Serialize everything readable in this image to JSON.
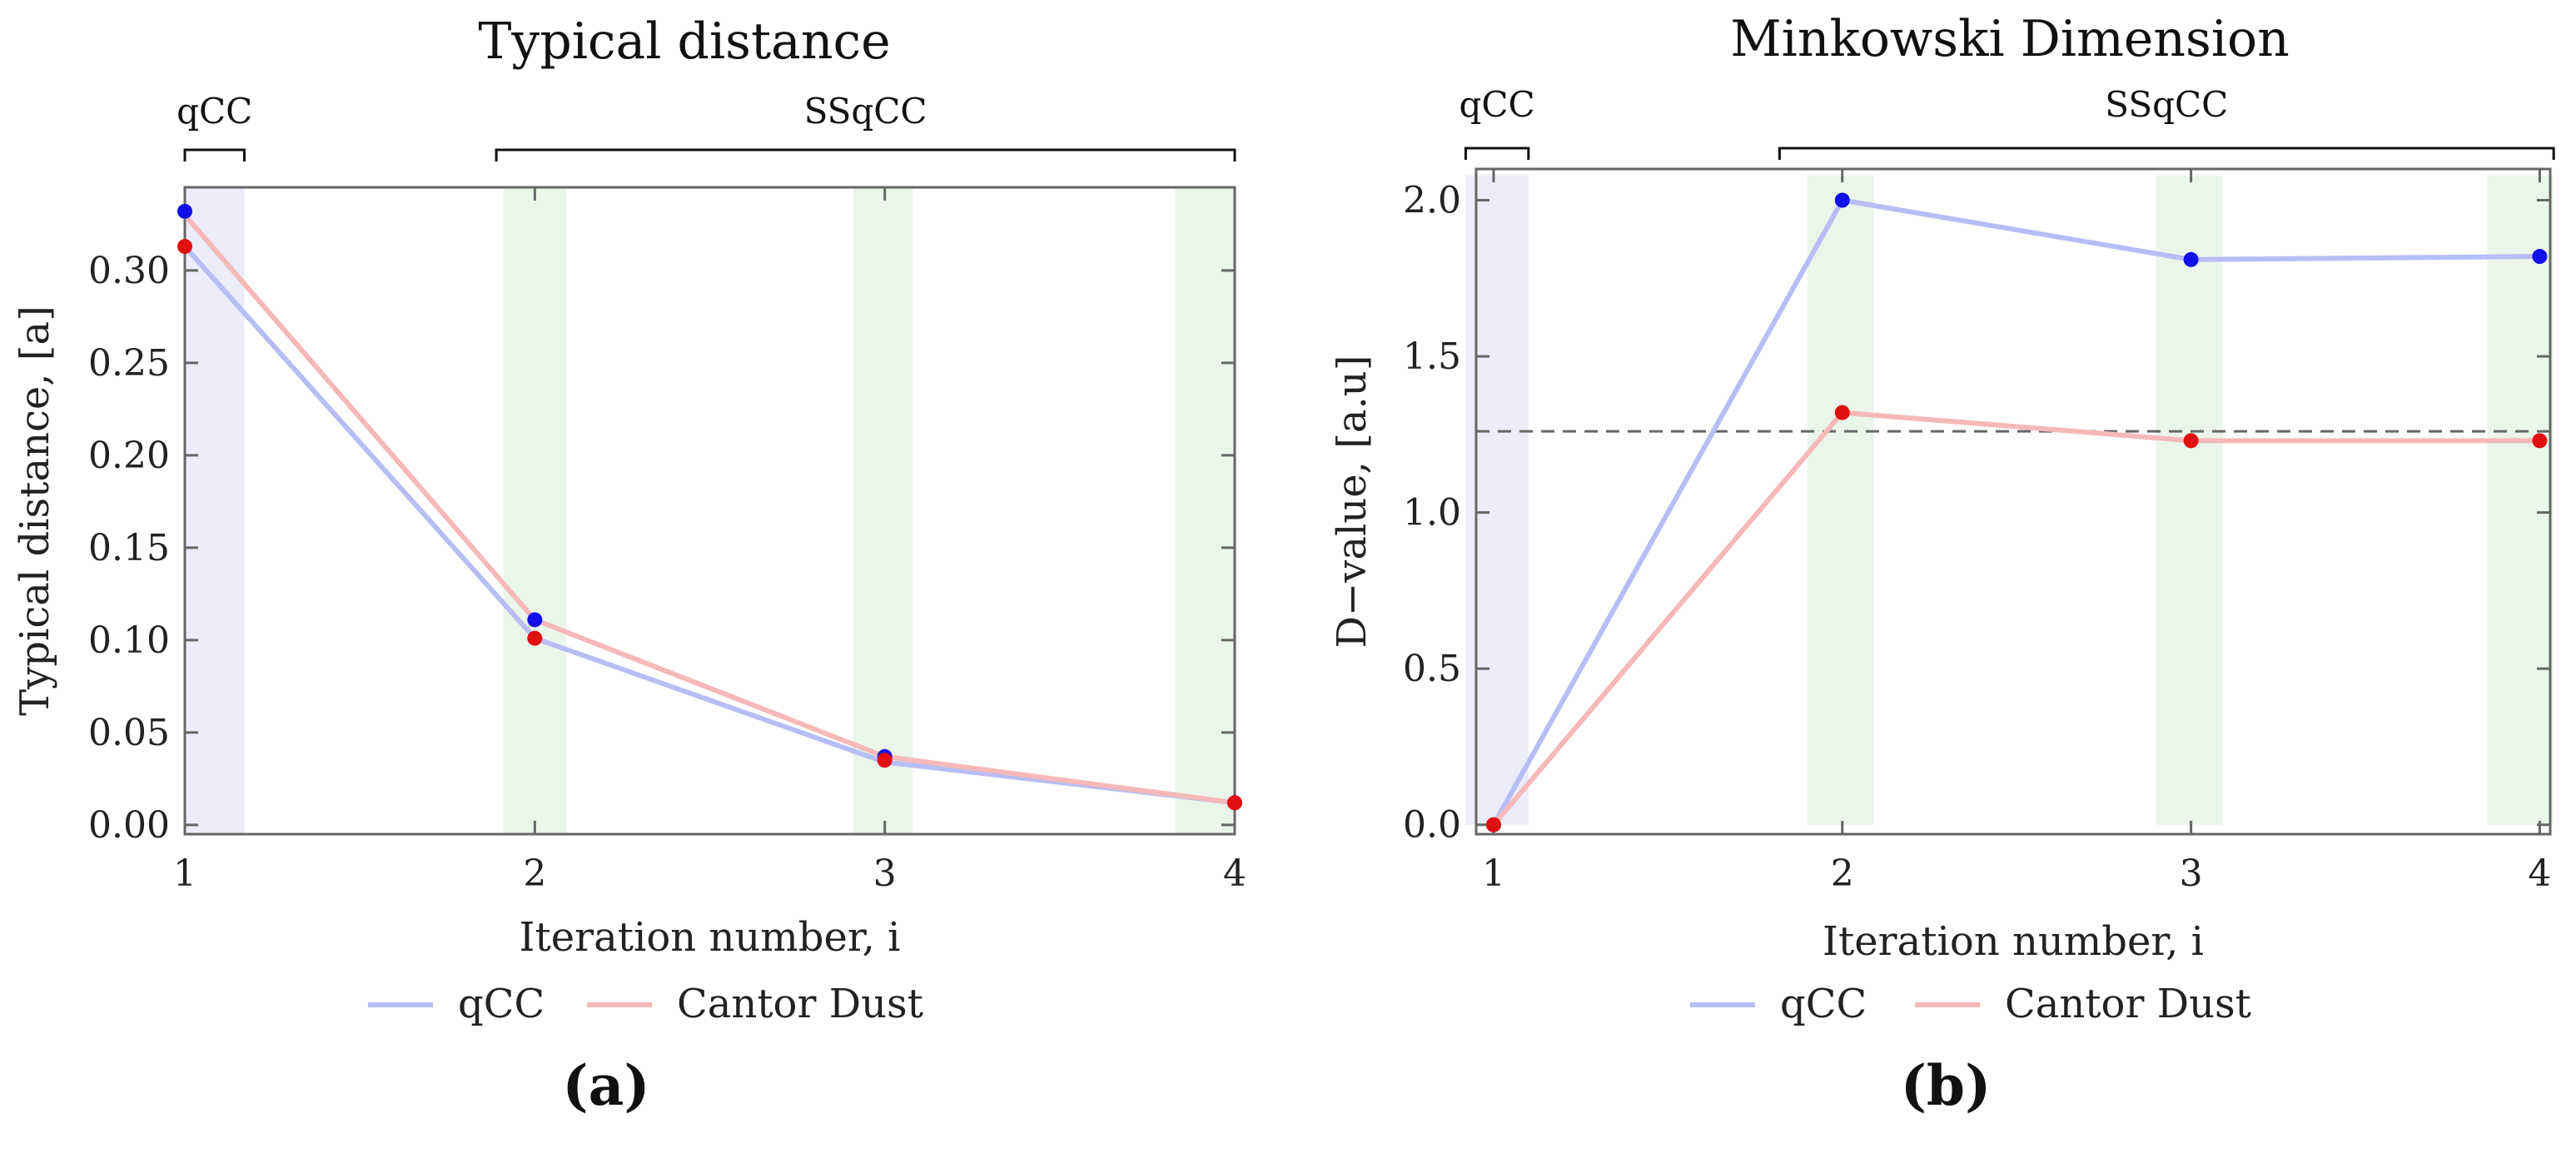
{
  "chart_data": [
    {
      "type": "line",
      "title": "Typical distance",
      "xlabel": "Iteration number, i",
      "ylabel": "Typical distance, [a]",
      "xlim": [
        1,
        4
      ],
      "ylim": [
        -0.005,
        0.345
      ],
      "x_ticks": [
        "1",
        "2",
        "3",
        "4"
      ],
      "y_ticks": [
        "0.00",
        "0.05",
        "0.10",
        "0.15",
        "0.20",
        "0.25",
        "0.30"
      ],
      "x": [
        1,
        2,
        3,
        4
      ],
      "series": [
        {
          "name": "qCC",
          "values": [
            0.332,
            0.111,
            0.037,
            0.012
          ],
          "line_values": [
            0.313,
            0.101,
            0.034,
            0.012
          ],
          "line_color": "#b7bdf5",
          "marker_color": "#1010e8"
        },
        {
          "name": "Cantor Dust",
          "values": [
            0.313,
            0.101,
            0.035,
            0.012
          ],
          "line_values": [
            0.33,
            0.111,
            0.037,
            0.012
          ],
          "line_color": "#f7b8b8",
          "marker_color": "#e01010"
        }
      ],
      "bands": [
        {
          "from": 1.0,
          "to": 1.17,
          "color": "#ececfa"
        },
        {
          "from": 1.91,
          "to": 2.09,
          "color": "#eaf6ea"
        },
        {
          "from": 2.91,
          "to": 3.08,
          "color": "#eaf6ea"
        },
        {
          "from": 3.83,
          "to": 4.0,
          "color": "#eaf6ea"
        }
      ],
      "brackets": [
        {
          "label": "qCC",
          "from": 1.0,
          "to": 1.17
        },
        {
          "label": "SSqCC",
          "from": 1.89,
          "to": 4.0
        }
      ],
      "legend": [
        "qCC",
        "Cantor Dust"
      ],
      "panel_label": "(a)"
    },
    {
      "type": "line",
      "title": "Minkowski Dimension",
      "xlabel": "Iteration number, i",
      "ylabel": "D−value, [a.u]",
      "xlim": [
        0.95,
        4.03
      ],
      "ylim": [
        -0.03,
        2.1
      ],
      "x_ticks": [
        "1",
        "2",
        "3",
        "4"
      ],
      "y_ticks": [
        "0.0",
        "0.5",
        "1.0",
        "1.5",
        "2.0"
      ],
      "x": [
        1,
        2,
        3,
        4
      ],
      "series": [
        {
          "name": "qCC",
          "values": [
            0.0,
            2.0,
            1.81,
            1.82
          ],
          "line_color": "#b7bdf5",
          "marker_color": "#1010e8"
        },
        {
          "name": "Cantor Dust",
          "values": [
            0.0,
            1.32,
            1.23,
            1.23
          ],
          "line_color": "#f7b8b8",
          "marker_color": "#e01010"
        }
      ],
      "reference_line": 1.26,
      "bands": [
        {
          "from": 0.92,
          "to": 1.1,
          "color": "#ececfa"
        },
        {
          "from": 1.9,
          "to": 2.09,
          "color": "#eaf6ea"
        },
        {
          "from": 2.9,
          "to": 3.09,
          "color": "#eaf6ea"
        },
        {
          "from": 3.85,
          "to": 4.04,
          "color": "#eaf6ea"
        }
      ],
      "brackets": [
        {
          "label": "qCC",
          "from": 0.92,
          "to": 1.1
        },
        {
          "label": "SSqCC",
          "from": 1.82,
          "to": 4.04
        }
      ],
      "legend": [
        "qCC",
        "Cantor Dust"
      ],
      "panel_label": "(b)"
    }
  ]
}
